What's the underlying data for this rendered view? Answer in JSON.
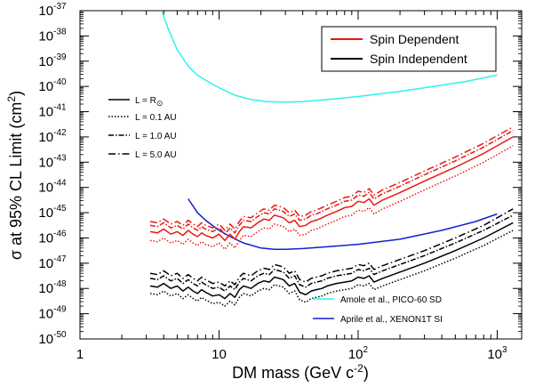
{
  "chart_data": {
    "type": "line",
    "xlabel": "DM mass (GeV c",
    "xlabel_sup": "-2",
    "xlabel_tail": ")",
    "ylabel": "σ at 95% CL Limit (cm",
    "ylabel_sup": "2",
    "ylabel_tail": ")",
    "x_scale": "log",
    "y_scale": "log",
    "xlim": [
      1,
      1500
    ],
    "ylim": [
      1e-50,
      1e-37
    ],
    "x_ticks": [
      {
        "value": 1,
        "base": "1",
        "exp": ""
      },
      {
        "value": 10,
        "base": "10",
        "exp": ""
      },
      {
        "value": 100,
        "base": "10",
        "exp": "2"
      },
      {
        "value": 1000,
        "base": "10",
        "exp": "3"
      }
    ],
    "y_tick_exponents": [
      -50,
      -49,
      -48,
      -47,
      -46,
      -45,
      -44,
      -43,
      -42,
      -41,
      -40,
      -39,
      -38,
      -37
    ],
    "y_tick_base": "10",
    "grid": false,
    "legend_main": {
      "position": "top-right",
      "entries": [
        {
          "label": "Spin Dependent",
          "color": "#e8180f"
        },
        {
          "label": "Spin Independent",
          "color": "#000000"
        }
      ]
    },
    "legend_L": {
      "position": "upper-left",
      "entries": [
        {
          "label": "L = R",
          "sub_symbol": "⊙",
          "dash": "solid"
        },
        {
          "label": "L = 0.1 AU",
          "dash": "dotted"
        },
        {
          "label": "L = 1.0 AU",
          "dash": "dashdot"
        },
        {
          "label": "L = 5.0 AU",
          "dash": "dashdotlong"
        }
      ]
    },
    "legend_exp": {
      "position": "bottom-right",
      "entries": [
        {
          "label": "Amole et al., PICO-60 SD",
          "color": "#2ff0f0"
        },
        {
          "label": "Aprile et al., XENON1T SI",
          "color": "#1020d0"
        }
      ]
    },
    "series": [
      {
        "group": "PICO-60",
        "color": "#2ff0f0",
        "dash": "solid",
        "x": [
          3.9,
          4.3,
          5,
          6,
          7,
          8,
          10,
          13,
          17,
          22,
          30,
          40,
          60,
          100,
          200,
          400,
          600,
          1000
        ],
        "y": [
          -37.05,
          -37.7,
          -38.55,
          -39.2,
          -39.55,
          -39.75,
          -40.05,
          -40.35,
          -40.52,
          -40.6,
          -40.62,
          -40.6,
          -40.52,
          -40.4,
          -40.2,
          -39.95,
          -39.8,
          -39.55
        ]
      },
      {
        "group": "XENON1T",
        "color": "#1020d0",
        "dash": "solid",
        "x": [
          6,
          7,
          8,
          10,
          12,
          15,
          20,
          25,
          30,
          40,
          60,
          100,
          200,
          400,
          700,
          1000
        ],
        "y": [
          -44.45,
          -45.0,
          -45.3,
          -45.7,
          -45.95,
          -46.2,
          -46.4,
          -46.45,
          -46.45,
          -46.42,
          -46.35,
          -46.25,
          -46.05,
          -45.7,
          -45.35,
          -45.05
        ]
      },
      {
        "group": "SD",
        "label": "L = R⊙",
        "color": "#e8180f",
        "dash": "solid",
        "x": [
          3.2,
          3.6,
          4,
          4.5,
          5,
          5.5,
          6,
          6.5,
          7,
          7.5,
          8,
          9,
          10,
          11,
          12,
          13,
          14,
          15,
          17,
          19,
          21,
          23,
          25,
          27,
          29,
          32,
          35,
          38,
          42,
          46,
          50,
          55,
          60,
          70,
          80,
          90,
          100,
          110,
          120,
          130,
          150,
          200,
          300,
          500,
          800,
          1300
        ],
        "y": [
          -45.75,
          -45.8,
          -45.65,
          -45.85,
          -45.75,
          -45.9,
          -45.7,
          -45.85,
          -45.95,
          -45.8,
          -45.9,
          -46.0,
          -45.85,
          -46.1,
          -45.85,
          -46.05,
          -45.75,
          -45.55,
          -45.6,
          -45.4,
          -45.25,
          -45.3,
          -45.1,
          -45.15,
          -45.2,
          -45.4,
          -45.3,
          -45.55,
          -45.5,
          -45.35,
          -45.3,
          -45.2,
          -45.1,
          -44.95,
          -44.8,
          -44.75,
          -44.55,
          -44.6,
          -44.45,
          -44.7,
          -44.5,
          -44.2,
          -43.75,
          -43.2,
          -42.65,
          -42.0
        ]
      },
      {
        "group": "SD",
        "label": "L = 0.1 AU",
        "color": "#e8180f",
        "dash": "dotted",
        "x": [
          3.2,
          3.6,
          4,
          4.5,
          5,
          5.5,
          6,
          6.5,
          7,
          7.5,
          8,
          9,
          10,
          11,
          12,
          13,
          14,
          15,
          17,
          19,
          21,
          23,
          25,
          27,
          29,
          32,
          35,
          38,
          42,
          46,
          50,
          55,
          60,
          70,
          80,
          90,
          100,
          110,
          120,
          130,
          150,
          200,
          300,
          500,
          800,
          1300
        ],
        "y": [
          -46.1,
          -46.15,
          -46.0,
          -46.2,
          -46.1,
          -46.25,
          -46.05,
          -46.2,
          -46.3,
          -46.15,
          -46.25,
          -46.35,
          -46.2,
          -46.45,
          -46.2,
          -46.4,
          -46.1,
          -45.9,
          -45.95,
          -45.75,
          -45.6,
          -45.65,
          -45.45,
          -45.5,
          -45.55,
          -45.75,
          -45.65,
          -45.9,
          -45.85,
          -45.7,
          -45.65,
          -45.55,
          -45.45,
          -45.3,
          -45.15,
          -45.1,
          -44.9,
          -44.95,
          -44.8,
          -45.05,
          -44.85,
          -44.55,
          -44.1,
          -43.55,
          -43.0,
          -42.35
        ]
      },
      {
        "group": "SD",
        "label": "L = 1.0 AU",
        "color": "#e8180f",
        "dash": "dashdot",
        "x": [
          3.2,
          3.6,
          4,
          4.5,
          5,
          5.5,
          6,
          6.5,
          7,
          7.5,
          8,
          9,
          10,
          11,
          12,
          13,
          14,
          15,
          17,
          19,
          21,
          23,
          25,
          27,
          29,
          32,
          35,
          38,
          42,
          46,
          50,
          55,
          60,
          70,
          80,
          90,
          100,
          110,
          120,
          130,
          150,
          200,
          300,
          500,
          800,
          1300
        ],
        "y": [
          -45.5,
          -45.55,
          -45.4,
          -45.6,
          -45.5,
          -45.65,
          -45.45,
          -45.6,
          -45.7,
          -45.55,
          -45.65,
          -45.75,
          -45.6,
          -45.85,
          -45.6,
          -45.8,
          -45.5,
          -45.3,
          -45.35,
          -45.15,
          -45.0,
          -45.05,
          -44.85,
          -44.9,
          -44.95,
          -45.15,
          -45.05,
          -45.3,
          -45.25,
          -45.1,
          -45.05,
          -44.95,
          -44.85,
          -44.7,
          -44.55,
          -44.5,
          -44.3,
          -44.35,
          -44.2,
          -44.45,
          -44.25,
          -43.95,
          -43.5,
          -42.95,
          -42.4,
          -41.75
        ]
      },
      {
        "group": "SD",
        "label": "L = 5.0 AU",
        "color": "#e8180f",
        "dash": "dashdotlong",
        "x": [
          3.2,
          3.6,
          4,
          4.5,
          5,
          5.5,
          6,
          6.5,
          7,
          7.5,
          8,
          9,
          10,
          11,
          12,
          13,
          14,
          15,
          17,
          19,
          21,
          23,
          25,
          27,
          29,
          32,
          35,
          38,
          42,
          46,
          50,
          55,
          60,
          70,
          80,
          90,
          100,
          110,
          120,
          130,
          150,
          200,
          300,
          500,
          800,
          1300
        ],
        "y": [
          -45.35,
          -45.4,
          -45.25,
          -45.45,
          -45.35,
          -45.5,
          -45.3,
          -45.45,
          -45.55,
          -45.4,
          -45.5,
          -45.6,
          -45.45,
          -45.7,
          -45.45,
          -45.65,
          -45.35,
          -45.15,
          -45.2,
          -45.0,
          -44.85,
          -44.9,
          -44.7,
          -44.75,
          -44.8,
          -45.0,
          -44.9,
          -45.15,
          -45.1,
          -44.95,
          -44.9,
          -44.8,
          -44.7,
          -44.55,
          -44.4,
          -44.35,
          -44.15,
          -44.2,
          -44.05,
          -44.3,
          -44.1,
          -43.8,
          -43.35,
          -42.8,
          -42.25,
          -41.6
        ]
      },
      {
        "group": "SI",
        "label": "L = R⊙",
        "color": "#000000",
        "dash": "solid",
        "x": [
          3.2,
          3.6,
          4,
          4.5,
          5,
          5.5,
          6,
          6.5,
          7,
          7.5,
          8,
          9,
          10,
          11,
          12,
          13,
          14,
          15,
          17,
          19,
          21,
          23,
          25,
          27,
          29,
          32,
          35,
          38,
          42,
          46,
          50,
          55,
          60,
          70,
          80,
          90,
          100,
          110,
          120,
          130,
          150,
          200,
          300,
          500,
          800,
          1300
        ],
        "y": [
          -47.9,
          -47.95,
          -47.8,
          -48.0,
          -47.9,
          -48.1,
          -47.95,
          -48.1,
          -48.2,
          -48.05,
          -48.15,
          -48.3,
          -48.25,
          -48.4,
          -48.2,
          -48.35,
          -48.05,
          -47.9,
          -48.0,
          -47.8,
          -47.7,
          -47.75,
          -47.55,
          -47.6,
          -47.65,
          -47.9,
          -47.8,
          -48.15,
          -48.25,
          -48.1,
          -48.05,
          -48.0,
          -47.9,
          -47.8,
          -47.75,
          -47.7,
          -47.55,
          -47.6,
          -47.5,
          -47.75,
          -47.6,
          -47.35,
          -47.0,
          -46.5,
          -46.0,
          -45.4
        ]
      },
      {
        "group": "SI",
        "label": "L = 0.1 AU",
        "color": "#000000",
        "dash": "dotted",
        "x": [
          3.2,
          3.6,
          4,
          4.5,
          5,
          5.5,
          6,
          6.5,
          7,
          7.5,
          8,
          9,
          10,
          11,
          12,
          13,
          14,
          15,
          17,
          19,
          21,
          23,
          25,
          27,
          29,
          32,
          35,
          38,
          42,
          46,
          50,
          55,
          60,
          70,
          80,
          90,
          100,
          110,
          120,
          130,
          150,
          200,
          300,
          500,
          800,
          1300
        ],
        "y": [
          -48.2,
          -48.25,
          -48.1,
          -48.3,
          -48.2,
          -48.4,
          -48.25,
          -48.4,
          -48.5,
          -48.35,
          -48.45,
          -48.6,
          -48.55,
          -48.7,
          -48.5,
          -48.65,
          -48.35,
          -48.2,
          -48.3,
          -48.1,
          -48.0,
          -48.05,
          -47.85,
          -47.9,
          -47.95,
          -48.2,
          -48.1,
          -48.45,
          -48.55,
          -48.4,
          -48.35,
          -48.3,
          -48.2,
          -48.1,
          -48.05,
          -48.0,
          -47.85,
          -47.9,
          -47.8,
          -48.05,
          -47.9,
          -47.65,
          -47.3,
          -46.8,
          -46.3,
          -45.7
        ]
      },
      {
        "group": "SI",
        "label": "L = 1.0 AU",
        "color": "#000000",
        "dash": "dashdot",
        "x": [
          3.2,
          3.6,
          4,
          4.5,
          5,
          5.5,
          6,
          6.5,
          7,
          7.5,
          8,
          9,
          10,
          11,
          12,
          13,
          14,
          15,
          17,
          19,
          21,
          23,
          25,
          27,
          29,
          32,
          35,
          38,
          42,
          46,
          50,
          55,
          60,
          70,
          80,
          90,
          100,
          110,
          120,
          130,
          150,
          200,
          300,
          500,
          800,
          1300
        ],
        "y": [
          -47.6,
          -47.65,
          -47.5,
          -47.7,
          -47.6,
          -47.8,
          -47.65,
          -47.8,
          -47.9,
          -47.75,
          -47.85,
          -48.0,
          -47.95,
          -48.1,
          -47.9,
          -48.05,
          -47.75,
          -47.6,
          -47.7,
          -47.5,
          -47.4,
          -47.45,
          -47.25,
          -47.3,
          -47.35,
          -47.6,
          -47.5,
          -47.85,
          -47.95,
          -47.8,
          -47.75,
          -47.7,
          -47.6,
          -47.5,
          -47.45,
          -47.4,
          -47.25,
          -47.3,
          -47.2,
          -47.45,
          -47.3,
          -47.05,
          -46.7,
          -46.2,
          -45.7,
          -45.1
        ]
      },
      {
        "group": "SI",
        "label": "L = 5.0 AU",
        "color": "#000000",
        "dash": "dashdotlong",
        "x": [
          3.2,
          3.6,
          4,
          4.5,
          5,
          5.5,
          6,
          6.5,
          7,
          7.5,
          8,
          9,
          10,
          11,
          12,
          13,
          14,
          15,
          17,
          19,
          21,
          23,
          25,
          27,
          29,
          32,
          35,
          38,
          42,
          46,
          50,
          55,
          60,
          70,
          80,
          90,
          100,
          110,
          120,
          130,
          150,
          200,
          300,
          500,
          800,
          1300
        ],
        "y": [
          -47.4,
          -47.45,
          -47.3,
          -47.5,
          -47.4,
          -47.6,
          -47.45,
          -47.6,
          -47.7,
          -47.55,
          -47.65,
          -47.8,
          -47.75,
          -47.9,
          -47.7,
          -47.85,
          -47.55,
          -47.4,
          -47.5,
          -47.3,
          -47.2,
          -47.25,
          -47.05,
          -47.1,
          -47.15,
          -47.4,
          -47.3,
          -47.65,
          -47.75,
          -47.6,
          -47.55,
          -47.5,
          -47.4,
          -47.3,
          -47.25,
          -47.2,
          -47.05,
          -47.1,
          -47.0,
          -47.25,
          -47.1,
          -46.85,
          -46.5,
          -46.0,
          -45.5,
          -44.85
        ]
      }
    ]
  }
}
